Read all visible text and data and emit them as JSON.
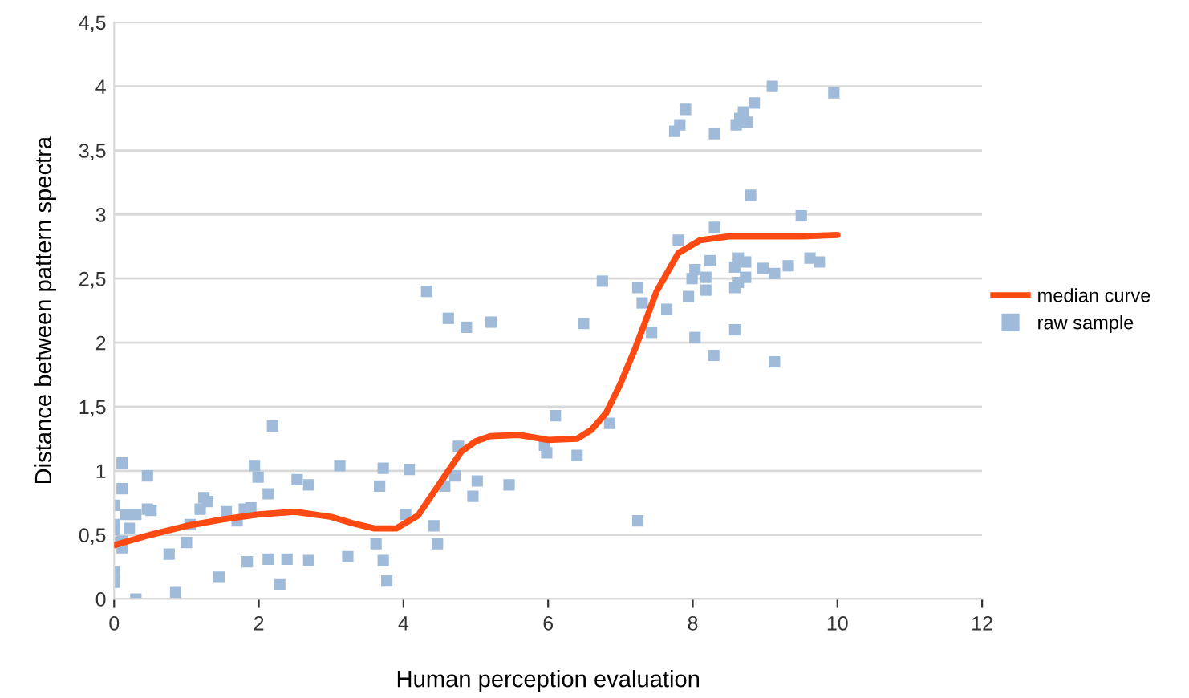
{
  "chart_data": {
    "type": "scatter",
    "xlabel": "Human perception evaluation",
    "ylabel": "Distance between pattern spectra",
    "xlim": [
      0,
      12
    ],
    "xticks": [
      0,
      2,
      4,
      6,
      8,
      10,
      12
    ],
    "ylim": [
      0,
      4.5
    ],
    "yticks": [
      0,
      {
        "value": 0.5,
        "label": "0,5"
      },
      1,
      {
        "value": 1.5,
        "label": "1,5"
      },
      2,
      {
        "value": 2.5,
        "label": "2,5"
      },
      3,
      {
        "value": 3.5,
        "label": "3,5"
      },
      4,
      {
        "value": 4.5,
        "label": "4,5"
      }
    ],
    "grid": "y",
    "legend": "right",
    "series": [
      {
        "name": "median curve",
        "type": "line",
        "color": "#fc4a12",
        "marker": "none",
        "line_style": "solid",
        "x": [
          0,
          0.5,
          1,
          1.5,
          2,
          2.5,
          3,
          3.3,
          3.6,
          3.9,
          4.2,
          4.5,
          4.8,
          5.0,
          5.2,
          5.6,
          6,
          6.4,
          6.6,
          6.8,
          7.0,
          7.2,
          7.5,
          7.8,
          8.1,
          8.5,
          9,
          9.5,
          10
        ],
        "values": [
          0.42,
          0.5,
          0.57,
          0.62,
          0.66,
          0.68,
          0.64,
          0.59,
          0.55,
          0.55,
          0.65,
          0.9,
          1.15,
          1.23,
          1.27,
          1.28,
          1.24,
          1.25,
          1.32,
          1.45,
          1.68,
          1.95,
          2.4,
          2.7,
          2.8,
          2.83,
          2.83,
          2.83,
          2.84
        ]
      },
      {
        "name": "raw sample",
        "color": "#9fbbd9",
        "marker": "square",
        "x": [
          0,
          0,
          0,
          0,
          0,
          0,
          0.11,
          0.11,
          0.11,
          0.11,
          0.16,
          0.21,
          0.3,
          0.3,
          0.46,
          0.46,
          0.51,
          0.76,
          0.85,
          1.0,
          1.05,
          1.19,
          1.24,
          1.29,
          1.45,
          1.55,
          1.7,
          1.8,
          1.84,
          1.89,
          1.94,
          1.99,
          2.13,
          2.13,
          2.19,
          2.29,
          2.39,
          2.53,
          2.69,
          2.69,
          3.12,
          3.23,
          3.62,
          3.67,
          3.72,
          3.72,
          3.77,
          4.03,
          4.08,
          4.32,
          4.42,
          4.47,
          4.57,
          4.62,
          4.71,
          4.76,
          4.87,
          4.96,
          5.02,
          5.21,
          5.46,
          5.95,
          5.98,
          6.1,
          6.4,
          6.49,
          6.75,
          6.85,
          7.24,
          7.24,
          7.3,
          7.43,
          7.64,
          7.75,
          7.82,
          7.8,
          7.9,
          7.94,
          7.99,
          8.03,
          8.03,
          8.18,
          8.18,
          8.24,
          8.29,
          8.3,
          8.3,
          8.58,
          8.58,
          8.58,
          8.6,
          8.63,
          8.63,
          8.65,
          8.7,
          8.73,
          8.73,
          8.75,
          8.8,
          8.85,
          8.97,
          9.1,
          9.13,
          9.13,
          9.32,
          9.5,
          9.62,
          9.75,
          9.95
        ],
        "values": [
          0.73,
          0.58,
          0.54,
          0.44,
          0.21,
          0.13,
          1.06,
          0.86,
          0.45,
          0.4,
          0.66,
          0.55,
          0.66,
          0.0,
          0.96,
          0.7,
          0.69,
          0.35,
          0.05,
          0.44,
          0.58,
          0.7,
          0.79,
          0.76,
          0.17,
          0.68,
          0.61,
          0.7,
          0.29,
          0.71,
          1.04,
          0.95,
          0.82,
          0.31,
          1.35,
          0.11,
          0.31,
          0.93,
          0.89,
          0.3,
          1.04,
          0.33,
          0.43,
          0.88,
          1.02,
          0.3,
          0.14,
          0.66,
          1.01,
          2.4,
          0.57,
          0.43,
          0.88,
          2.19,
          0.96,
          1.19,
          2.12,
          0.8,
          0.92,
          2.16,
          0.89,
          1.2,
          1.14,
          1.43,
          1.12,
          2.15,
          2.48,
          1.37,
          0.61,
          2.43,
          2.31,
          2.08,
          2.26,
          3.65,
          3.7,
          2.8,
          3.82,
          2.36,
          2.5,
          2.04,
          2.57,
          2.51,
          2.41,
          2.64,
          1.9,
          3.63,
          2.9,
          2.1,
          2.43,
          2.59,
          3.7,
          2.47,
          2.66,
          3.75,
          3.8,
          2.51,
          2.63,
          3.72,
          3.15,
          3.87,
          2.58,
          4.0,
          2.54,
          1.85,
          2.6,
          2.99,
          2.66,
          2.63,
          3.95
        ]
      }
    ]
  }
}
